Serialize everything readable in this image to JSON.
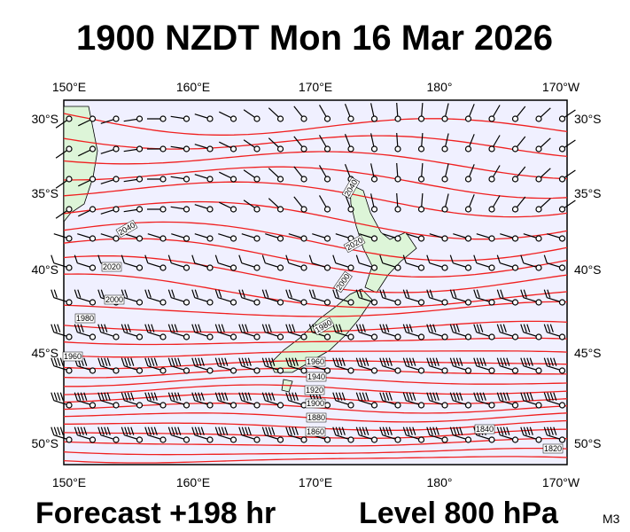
{
  "header": {
    "title": "1900 NZDT Mon 16 Mar 2026"
  },
  "footer": {
    "forecast": "Forecast +198 hr",
    "level": "Level 800 hPa",
    "code": "M3"
  },
  "map": {
    "lon_labels": [
      "150°E",
      "160°E",
      "170°E",
      "180°",
      "170°W"
    ],
    "lat_labels": [
      "30°S",
      "35°S",
      "40°S",
      "45°S",
      "50°S"
    ],
    "contour_labels": [
      "2040",
      "2040",
      "2020",
      "2020",
      "2000",
      "2000",
      "1980",
      "1980",
      "1960",
      "1960",
      "1940",
      "1920",
      "1900",
      "1880",
      "1860",
      "1840",
      "1820"
    ]
  }
}
